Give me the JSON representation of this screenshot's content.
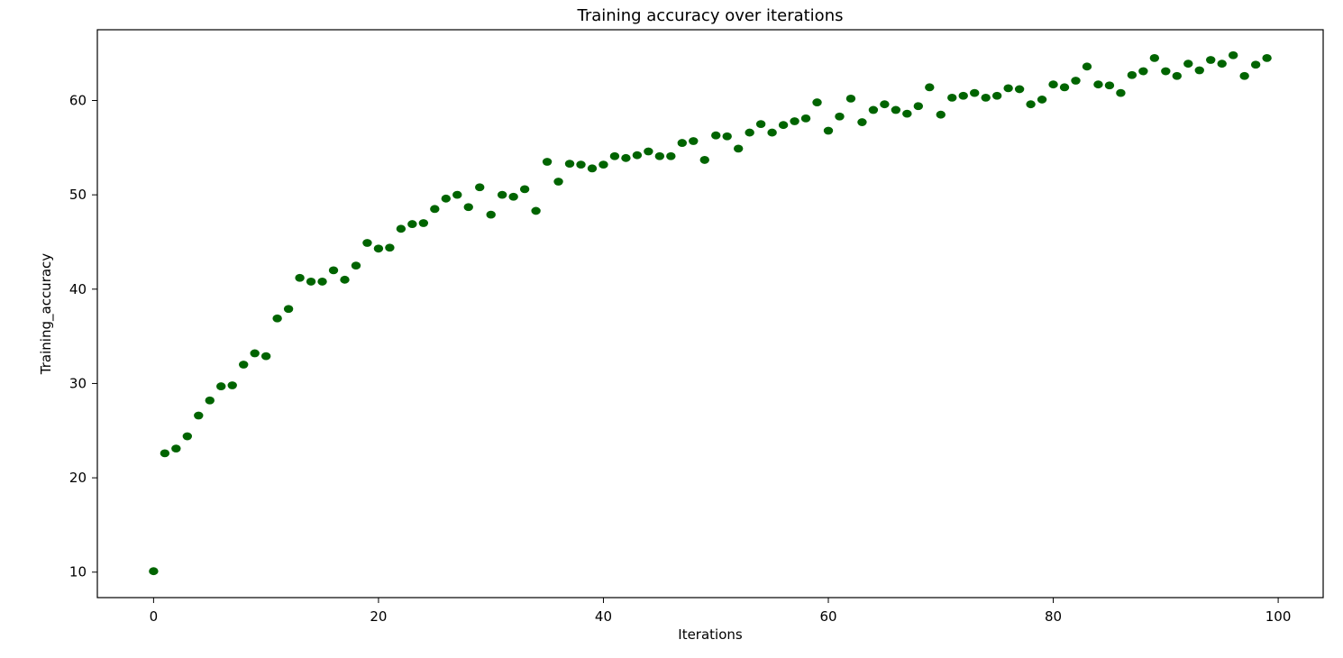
{
  "chart_data": {
    "type": "scatter",
    "title": "Training accuracy over iterations",
    "xlabel": "Iterations",
    "ylabel": "Training_accuracy",
    "xlim": [
      -5,
      104
    ],
    "ylim": [
      7.3,
      67.5
    ],
    "xticks": [
      0,
      20,
      40,
      60,
      80,
      100
    ],
    "yticks": [
      10,
      20,
      30,
      40,
      50,
      60
    ],
    "grid": false,
    "marker_color": "#006400",
    "series": [
      {
        "x": [
          0,
          1,
          2,
          3,
          4,
          5,
          6,
          7,
          8,
          9,
          10,
          11,
          12,
          13,
          14,
          15,
          16,
          17,
          18,
          19,
          20,
          21,
          22,
          23,
          24,
          25,
          26,
          27,
          28,
          29,
          30,
          31,
          32,
          33,
          34,
          35,
          36,
          37,
          38,
          39,
          40,
          41,
          42,
          43,
          44,
          45,
          46,
          47,
          48,
          49,
          50,
          51,
          52,
          53,
          54,
          55,
          56,
          57,
          58,
          59,
          60,
          61,
          62,
          63,
          64,
          65,
          66,
          67,
          68,
          69,
          70,
          71,
          72,
          73,
          74,
          75,
          76,
          77,
          78,
          79,
          80,
          81,
          82,
          83,
          84,
          85,
          86,
          87,
          88,
          89,
          90,
          91,
          92,
          93,
          94,
          95,
          96,
          97,
          98,
          99
        ],
        "y": [
          10.1,
          22.6,
          23.1,
          24.4,
          26.6,
          28.2,
          29.7,
          29.8,
          32.0,
          33.2,
          32.9,
          36.9,
          37.9,
          41.2,
          40.8,
          40.8,
          42.0,
          41.0,
          42.5,
          44.9,
          44.3,
          44.4,
          46.4,
          46.9,
          47.0,
          48.5,
          49.6,
          50.0,
          48.7,
          50.8,
          47.9,
          50.0,
          49.8,
          50.6,
          48.3,
          53.5,
          51.4,
          53.3,
          53.2,
          52.8,
          53.2,
          54.1,
          53.9,
          54.2,
          54.6,
          54.1,
          54.1,
          55.5,
          55.7,
          53.7,
          56.3,
          56.2,
          54.9,
          56.6,
          57.5,
          56.6,
          57.4,
          57.8,
          58.1,
          59.8,
          56.8,
          58.3,
          60.2,
          57.7,
          59.0,
          59.6,
          59.0,
          58.6,
          59.4,
          61.4,
          58.5,
          60.3,
          60.5,
          60.8,
          60.3,
          60.5,
          61.3,
          61.2,
          59.6,
          60.1,
          61.7,
          61.4,
          62.1,
          63.6,
          61.7,
          61.6,
          60.8,
          62.7,
          63.1,
          64.5,
          63.1,
          62.6,
          63.9,
          63.2,
          64.3,
          63.9,
          64.8,
          62.6,
          63.8,
          64.5
        ]
      }
    ]
  }
}
